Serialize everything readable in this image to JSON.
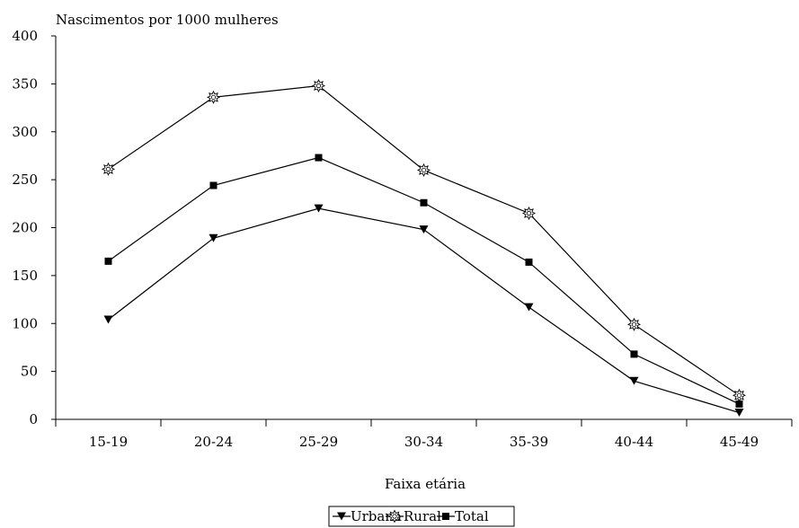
{
  "chart_data": {
    "type": "line",
    "ylabel": "Nascimentos por 1000 mulheres",
    "xlabel": "Faixa etária",
    "categories": [
      "15-19",
      "20-24",
      "25-29",
      "30-34",
      "35-39",
      "40-44",
      "45-49"
    ],
    "ylim": [
      0,
      400
    ],
    "yticks": [
      0,
      50,
      100,
      150,
      200,
      250,
      300,
      350,
      400
    ],
    "grid": false,
    "legend_position": "bottom",
    "series": [
      {
        "name": "Urbana",
        "marker": "triangle-down",
        "values": [
          104,
          189,
          220,
          198,
          117,
          40,
          7
        ]
      },
      {
        "name": "Rural",
        "marker": "star",
        "values": [
          261,
          336,
          348,
          260,
          215,
          99,
          25
        ]
      },
      {
        "name": "Total",
        "marker": "square",
        "values": [
          165,
          244,
          273,
          226,
          164,
          68,
          16
        ]
      }
    ]
  }
}
